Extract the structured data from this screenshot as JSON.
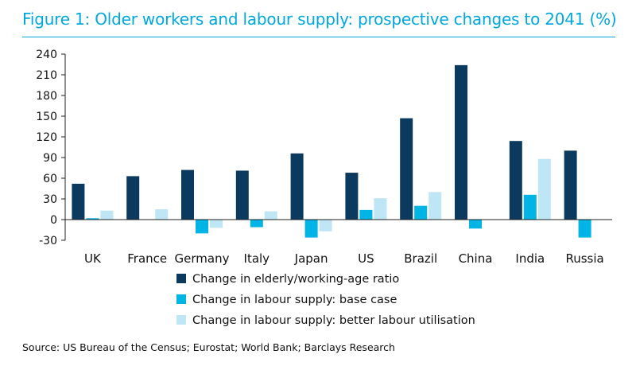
{
  "title": "Figure 1: Older workers and labour supply: prospective changes to 2041 (%)",
  "source": "Source: US Bureau of the Census; Eurostat; World Bank; Barclays Research",
  "colors": {
    "title": "#00a8e0",
    "s1": "#0b3a5e",
    "s2": "#00b4e6",
    "s3": "#bfe6f5"
  },
  "chart_data": {
    "type": "bar",
    "categories": [
      "UK",
      "France",
      "Germany",
      "Italy",
      "Japan",
      "US",
      "Brazil",
      "China",
      "India",
      "Russia"
    ],
    "series": [
      {
        "name": "Change in elderly/working-age ratio",
        "values": [
          52,
          63,
          72,
          71,
          96,
          68,
          147,
          224,
          114,
          100
        ]
      },
      {
        "name": "Change in labour supply: base case",
        "values": [
          2,
          0,
          -20,
          -11,
          -26,
          14,
          20,
          -13,
          36,
          -26
        ]
      },
      {
        "name": "Change in labour supply: better labour utilisation",
        "values": [
          13,
          15,
          -12,
          12,
          -17,
          31,
          40,
          0,
          88,
          0
        ]
      }
    ],
    "yticks": [
      -30,
      0,
      30,
      60,
      90,
      120,
      150,
      180,
      210,
      240
    ],
    "ylim": [
      -30,
      240
    ],
    "legend_position": "bottom",
    "grid": false
  }
}
